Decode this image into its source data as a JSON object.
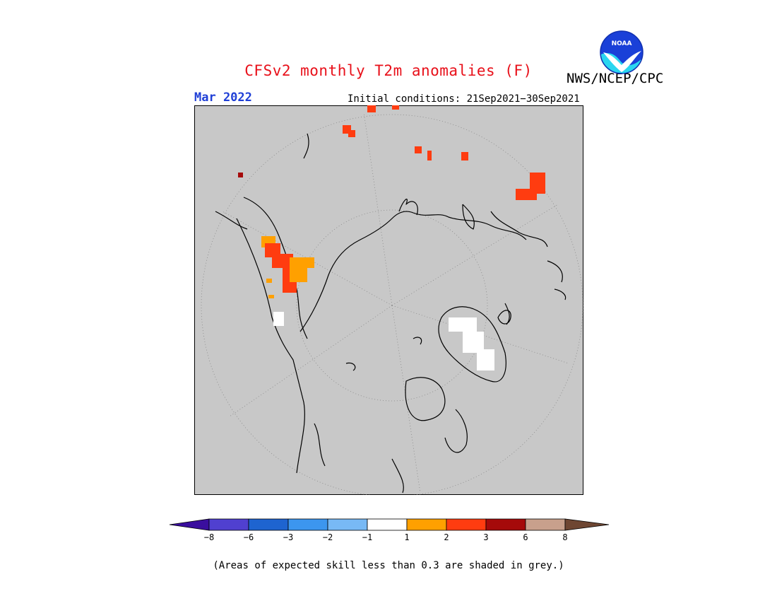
{
  "header": {
    "title": "CFSv2 monthly T2m anomalies (F)",
    "organization": "NWS/NCEP/CPC",
    "month": "Mar 2022",
    "initial_conditions": "Initial conditions: 21Sep2021−30Sep2021",
    "logo_text": "NOAA"
  },
  "legend": {
    "tick_labels": [
      "−8",
      "−6",
      "−3",
      "−2",
      "−1",
      "1",
      "2",
      "3",
      "6",
      "8"
    ],
    "colors": [
      "#3a0e9e",
      "#5040d0",
      "#1e64d0",
      "#3c96ef",
      "#78b9f5",
      "#ffffff",
      "#ffa000",
      "#ff3c10",
      "#a50a0a",
      "#c8a08c",
      "#6e4632"
    ]
  },
  "footer": {
    "note": "(Areas of expected skill less than 0.3 are shaded in grey.)"
  },
  "colors": {
    "background": "#c8c8c8",
    "title": "#e8101a",
    "month": "#1f3fd6"
  }
}
